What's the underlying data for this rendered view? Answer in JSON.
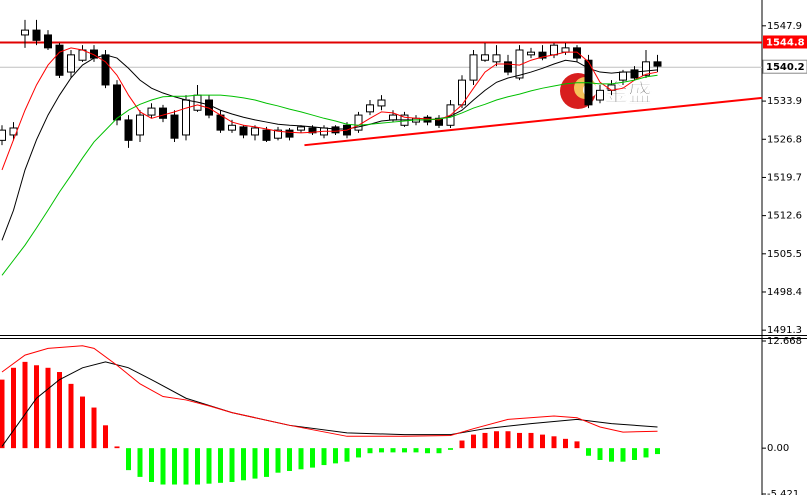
{
  "chart_data": [
    {
      "type": "candlestick",
      "ylim": [
        1490.4,
        1552.7
      ],
      "yticks": [
        1491.3,
        1498.4,
        1505.5,
        1512.6,
        1519.7,
        1526.8,
        1533.9,
        1547.9
      ],
      "up_color": "#ffffff",
      "down_color": "#000000",
      "outline_color": "#000000",
      "open": [
        1526.6,
        1527.6,
        1546.2,
        1547.1,
        1546.2,
        1544.3,
        1539.3,
        1541.5,
        1543.4,
        1542.5,
        1536.9,
        1530.4,
        1527.6,
        1531.3,
        1532.6,
        1531.3,
        1527.6,
        1532.2,
        1534.1,
        1531.3,
        1528.5,
        1529.1,
        1527.6,
        1528.5,
        1527.0,
        1528.5,
        1528.5,
        1528.9,
        1527.6,
        1529.1,
        1529.4,
        1528.5,
        1531.9,
        1533.0,
        1530.4,
        1529.4,
        1530.0,
        1530.9,
        1530.7,
        1529.4,
        1533.2,
        1537.8,
        1541.5,
        1541.2,
        1541.2,
        1538.2,
        1542.5,
        1543.0,
        1542.5,
        1543.0,
        1543.8,
        1541.5,
        1534.1,
        1535.9,
        1537.8,
        1539.7,
        1538.7,
        1541.2
      ],
      "high": [
        1529.4,
        1530.0,
        1549.0,
        1549.0,
        1547.1,
        1544.7,
        1543.4,
        1544.3,
        1544.3,
        1543.4,
        1537.8,
        1531.3,
        1532.2,
        1533.5,
        1533.2,
        1532.2,
        1535.0,
        1536.9,
        1535.0,
        1532.2,
        1530.4,
        1529.4,
        1529.4,
        1529.1,
        1529.1,
        1528.9,
        1529.4,
        1529.4,
        1529.4,
        1529.4,
        1530.0,
        1531.9,
        1534.1,
        1535.0,
        1532.2,
        1531.9,
        1531.3,
        1531.3,
        1531.3,
        1534.1,
        1538.7,
        1543.4,
        1544.7,
        1544.3,
        1542.5,
        1544.3,
        1543.8,
        1544.3,
        1544.7,
        1544.7,
        1544.3,
        1542.5,
        1536.9,
        1537.8,
        1539.7,
        1540.4,
        1543.4,
        1542.5
      ],
      "low": [
        1525.7,
        1526.6,
        1543.8,
        1544.3,
        1543.4,
        1538.2,
        1538.2,
        1541.2,
        1541.2,
        1536.3,
        1529.4,
        1525.2,
        1526.3,
        1530.7,
        1530.0,
        1526.3,
        1526.6,
        1531.9,
        1530.7,
        1528.0,
        1528.0,
        1527.0,
        1526.6,
        1526.3,
        1526.6,
        1526.6,
        1528.0,
        1527.6,
        1527.0,
        1527.6,
        1527.0,
        1528.0,
        1531.3,
        1532.2,
        1530.0,
        1529.1,
        1529.4,
        1529.4,
        1528.9,
        1528.9,
        1532.6,
        1536.9,
        1541.2,
        1540.4,
        1538.7,
        1537.8,
        1541.9,
        1541.5,
        1541.9,
        1542.5,
        1541.2,
        1532.6,
        1533.5,
        1535.0,
        1536.9,
        1537.8,
        1538.2,
        1539.3
      ],
      "close": [
        1528.5,
        1528.9,
        1547.1,
        1545.2,
        1543.8,
        1538.7,
        1542.5,
        1543.4,
        1541.9,
        1536.9,
        1530.4,
        1526.6,
        1531.3,
        1532.6,
        1530.7,
        1527.0,
        1534.1,
        1535.0,
        1531.3,
        1528.5,
        1529.4,
        1527.6,
        1528.9,
        1526.6,
        1528.5,
        1527.2,
        1529.1,
        1528.0,
        1528.9,
        1528.0,
        1527.6,
        1531.3,
        1533.2,
        1534.1,
        1531.3,
        1531.3,
        1530.7,
        1530.0,
        1529.4,
        1533.2,
        1537.8,
        1542.5,
        1542.5,
        1542.5,
        1539.3,
        1543.4,
        1543.0,
        1541.9,
        1544.3,
        1543.8,
        1541.9,
        1533.2,
        1535.9,
        1536.9,
        1539.3,
        1538.2,
        1541.2,
        1540.4
      ],
      "moving_averages": [
        {
          "color": "#000000",
          "values": [
            1508.0,
            1513.6,
            1521.1,
            1526.7,
            1531.3,
            1535.0,
            1538.2,
            1540.6,
            1541.9,
            1542.5,
            1541.9,
            1540.0,
            1537.8,
            1536.3,
            1535.4,
            1534.7,
            1534.1,
            1533.7,
            1533.2,
            1532.2,
            1531.5,
            1530.9,
            1530.4,
            1530.0,
            1529.6,
            1529.4,
            1529.3,
            1529.1,
            1528.9,
            1528.7,
            1528.7,
            1529.1,
            1529.6,
            1530.2,
            1530.4,
            1530.4,
            1530.4,
            1530.4,
            1530.6,
            1531.1,
            1532.2,
            1534.1,
            1535.9,
            1537.4,
            1538.2,
            1538.7,
            1539.3,
            1540.0,
            1540.8,
            1541.5,
            1541.2,
            1540.0,
            1539.3,
            1539.1,
            1539.3,
            1539.3,
            1539.5,
            1539.7
          ]
        },
        {
          "color": "#ff0000",
          "values": [
            1521.1,
            1526.7,
            1532.2,
            1536.9,
            1540.6,
            1543.0,
            1543.8,
            1543.4,
            1542.5,
            1541.2,
            1538.7,
            1535.0,
            1531.9,
            1530.7,
            1531.3,
            1531.9,
            1532.6,
            1533.2,
            1532.6,
            1531.3,
            1530.0,
            1529.4,
            1529.1,
            1528.7,
            1528.3,
            1528.1,
            1528.0,
            1528.1,
            1528.3,
            1528.3,
            1528.5,
            1529.4,
            1530.7,
            1531.9,
            1531.7,
            1530.9,
            1530.7,
            1530.6,
            1530.4,
            1531.3,
            1533.2,
            1536.3,
            1539.3,
            1540.8,
            1540.8,
            1540.6,
            1541.5,
            1542.1,
            1542.5,
            1543.0,
            1543.0,
            1541.2,
            1537.4,
            1535.9,
            1536.3,
            1537.8,
            1538.9,
            1539.3
          ]
        },
        {
          "color": "#00c000",
          "values": [
            1501.5,
            1504.3,
            1507.1,
            1510.3,
            1513.6,
            1517.0,
            1520.1,
            1523.3,
            1526.3,
            1528.5,
            1530.7,
            1532.2,
            1533.3,
            1534.1,
            1534.7,
            1534.8,
            1534.8,
            1535.0,
            1535.0,
            1535.0,
            1534.8,
            1534.5,
            1534.1,
            1533.5,
            1533.0,
            1532.4,
            1531.9,
            1531.3,
            1530.7,
            1530.2,
            1529.6,
            1529.4,
            1529.6,
            1529.8,
            1530.0,
            1530.2,
            1530.4,
            1530.4,
            1530.6,
            1530.9,
            1531.7,
            1532.6,
            1533.3,
            1534.1,
            1534.7,
            1535.2,
            1535.8,
            1536.3,
            1536.7,
            1537.1,
            1537.3,
            1537.3,
            1537.1,
            1537.1,
            1537.4,
            1537.8,
            1538.4,
            1538.7
          ]
        }
      ],
      "levels": [
        {
          "value": 1544.8,
          "color": "#e00000",
          "label_background": "#ff0000",
          "label_color": "#ffffff"
        },
        {
          "value": 1540.2,
          "color": "#c0c0c0",
          "label_background": "#ffffff",
          "label_color": "#000000"
        }
      ],
      "trendline": {
        "x": [
          26.3,
          66.1
        ],
        "values": [
          1525.7,
          1534.5
        ],
        "color": "#ff0000"
      },
      "watermark": "金盛"
    },
    {
      "type": "macd",
      "ylim": [
        -5.421,
        12.668
      ],
      "yticks": [
        12.668,
        {
          "value": 0,
          "label": "0.00"
        },
        -5.421
      ],
      "positive_color": "#ff0000",
      "negative_color": "#00ff00",
      "values": [
        8.1,
        9.5,
        10.2,
        9.8,
        9.5,
        9.0,
        7.6,
        6.1,
        4.8,
        2.7,
        0.2,
        -2.6,
        -3.4,
        -4.0,
        -4.3,
        -4.3,
        -4.3,
        -4.3,
        -4.2,
        -4.1,
        -4.0,
        -3.8,
        -3.6,
        -3.4,
        -2.9,
        -2.7,
        -2.5,
        -2.3,
        -2.0,
        -1.8,
        -1.6,
        -1.1,
        -0.6,
        -0.5,
        -0.5,
        -0.5,
        -0.5,
        -0.6,
        -0.6,
        -0.2,
        0.9,
        1.6,
        1.8,
        2.0,
        2.0,
        1.8,
        1.8,
        1.6,
        1.4,
        1.1,
        0.8,
        -0.9,
        -1.4,
        -1.6,
        -1.6,
        -1.4,
        -1.1,
        -0.7
      ],
      "series": [
        {
          "color": "#000000",
          "x": [
            0,
            3,
            5,
            7,
            9,
            11,
            13,
            16,
            20,
            25,
            30,
            35,
            39,
            42,
            46,
            50,
            53,
            57
          ],
          "values": [
            0.2,
            5.9,
            8.1,
            9.5,
            10.2,
            9.5,
            8.1,
            5.9,
            4.2,
            2.7,
            1.8,
            1.6,
            1.6,
            2.3,
            2.9,
            3.4,
            2.9,
            2.5
          ]
        },
        {
          "color": "#ff0000",
          "x": [
            0,
            2,
            4,
            7,
            8,
            10,
            12,
            14,
            16,
            18,
            20,
            25,
            30,
            35,
            39,
            41,
            44,
            48,
            50,
            52,
            54,
            57
          ],
          "values": [
            9.0,
            11.0,
            11.8,
            12.1,
            11.8,
            9.8,
            7.6,
            6.1,
            5.7,
            5.0,
            4.2,
            2.7,
            1.4,
            1.4,
            1.5,
            2.3,
            3.4,
            3.8,
            3.6,
            2.5,
            1.9,
            2.0
          ]
        }
      ]
    }
  ]
}
